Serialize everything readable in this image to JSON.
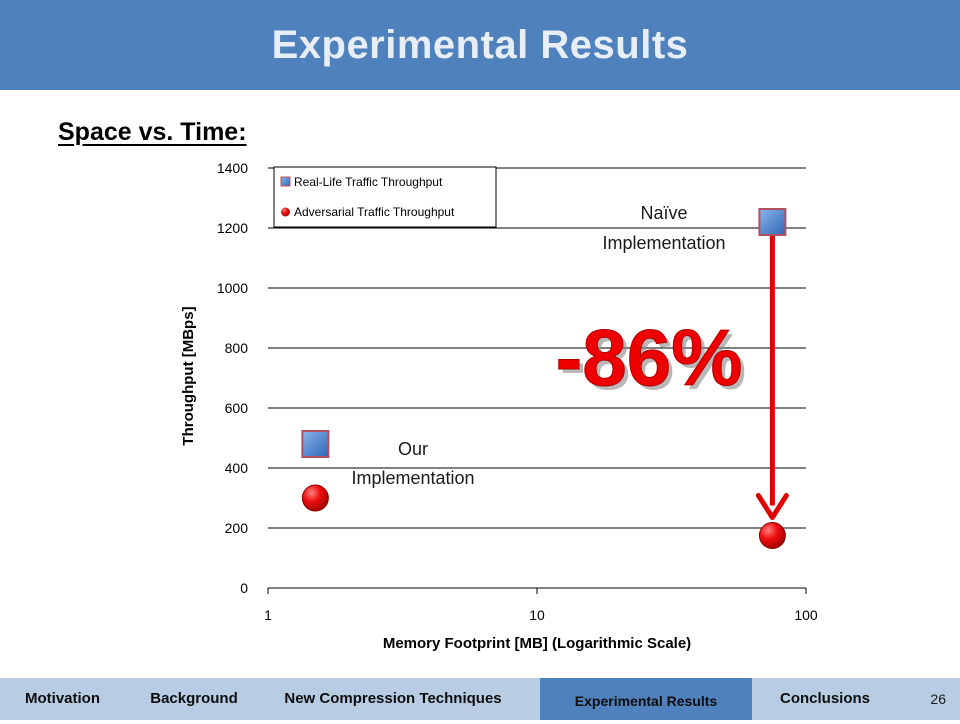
{
  "slide": {
    "title": "Experimental Results",
    "subtitle": "Space vs. Time:",
    "page_number": "26"
  },
  "nav": {
    "items": [
      {
        "label": "Motivation",
        "active": false
      },
      {
        "label": "Background",
        "active": false
      },
      {
        "label": "New Compression Techniques",
        "active": false
      },
      {
        "label": "Experimental Results",
        "active": true
      },
      {
        "label": "Conclusions",
        "active": false
      }
    ]
  },
  "annotations": {
    "naive_line1": "Naïve",
    "naive_line2": "Implementation",
    "ours_line1": "Our",
    "ours_line2": "Implementation",
    "reduction": "-86%"
  },
  "colors": {
    "header": "#4f81bd",
    "nav_bg": "#b8cce4",
    "nav_active": "#4f81bd",
    "series_square": "#4a7fc8",
    "series_circle": "#e00000",
    "arrow": "#e00000"
  },
  "chart_data": {
    "type": "scatter",
    "xlabel": "Memory Footprint [MB] (Logarithmic Scale)",
    "ylabel": "Throughput  [MBps]",
    "x_scale": "log",
    "xlim": [
      1,
      100
    ],
    "ylim": [
      0,
      1400
    ],
    "x_ticks": [
      "1",
      "10",
      "100"
    ],
    "y_ticks": [
      "0",
      "200",
      "400",
      "600",
      "800",
      "1000",
      "1200",
      "1400"
    ],
    "grid": "horizontal",
    "legend_placement": "top-left",
    "series": [
      {
        "name": "Real-Life Traffic Throughput",
        "marker": "square",
        "x": [
          1.5,
          75
        ],
        "y": [
          480,
          1220
        ]
      },
      {
        "name": "Adversarial Traffic Throughput",
        "marker": "circle",
        "x": [
          1.5,
          75
        ],
        "y": [
          300,
          175
        ]
      }
    ]
  }
}
